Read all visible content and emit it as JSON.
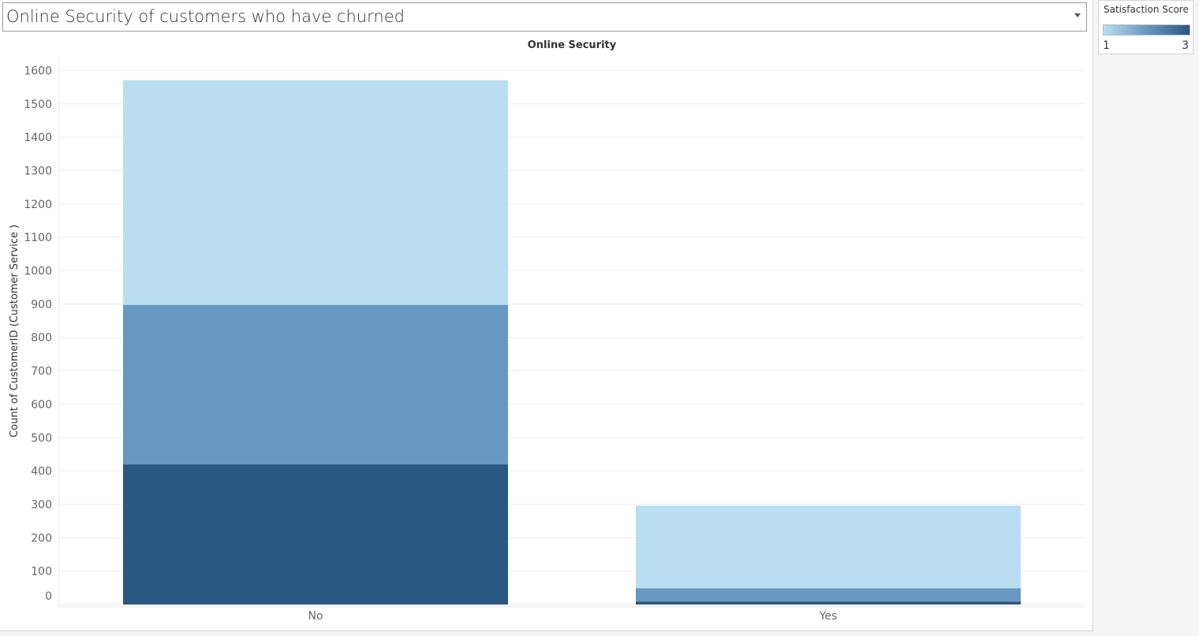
{
  "dashboard": {
    "title": "Online Security of customers who have churned"
  },
  "legend": {
    "title": "Satisfaction Score",
    "min_label": "1",
    "max_label": "3",
    "color_low": "#b9def1",
    "color_mid": "#6798c1",
    "color_high": "#2b5783"
  },
  "chart_data": {
    "type": "bar",
    "stacked": true,
    "title": "Online Security",
    "xlabel": "",
    "ylabel": "Count of CustomerID (Customer Service )",
    "categories": [
      "No",
      "Yes"
    ],
    "series": [
      {
        "name": "1",
        "color": "#b9def1",
        "values": [
          673,
          247
        ]
      },
      {
        "name": "2",
        "color": "#6798c1",
        "values": [
          478,
          40
        ]
      },
      {
        "name": "3",
        "color": "#2b5783",
        "values": [
          420,
          9
        ]
      }
    ],
    "ylim": [
      0,
      1600
    ],
    "yticks": [
      0,
      100,
      200,
      300,
      400,
      500,
      600,
      700,
      800,
      900,
      1000,
      1100,
      1200,
      1300,
      1400,
      1500,
      1600
    ],
    "grid": true,
    "legend_position": "top-right"
  }
}
